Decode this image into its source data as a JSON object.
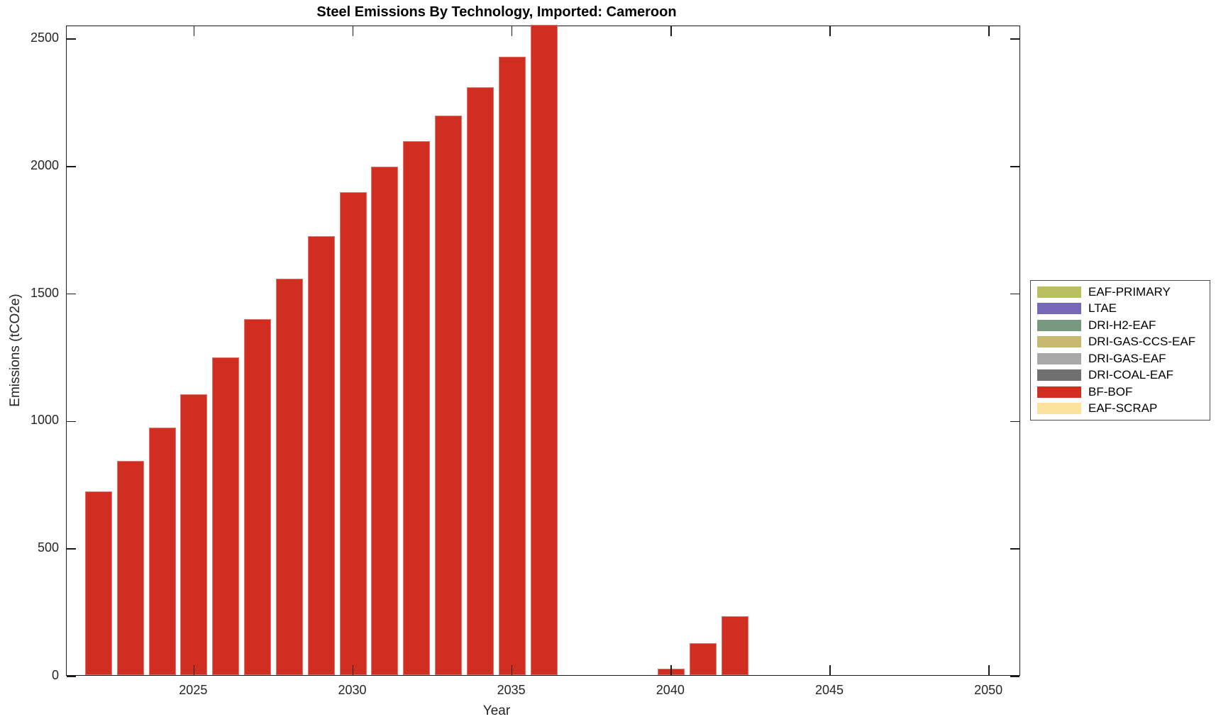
{
  "figure": {
    "title": "Steel Emissions By Technology, Imported: Cameroon",
    "xlabel": "Year",
    "ylabel": "Emissions (tCO2e)"
  },
  "chart_data": {
    "type": "bar",
    "title": "Steel Emissions By Technology, Imported: Cameroon",
    "xlabel": "Year",
    "ylabel": "Emissions (tCO2e)",
    "xlim": [
      2021,
      2051
    ],
    "ylim": [
      0,
      2550
    ],
    "x_ticks": [
      2025,
      2030,
      2035,
      2040,
      2045,
      2050
    ],
    "y_ticks": [
      0,
      500,
      1000,
      1500,
      2000,
      2500
    ],
    "grid": false,
    "legend_position": "right-outside",
    "series": [
      {
        "name": "BF-BOF",
        "color": "#cf2e21",
        "x": [
          2022,
          2023,
          2024,
          2025,
          2026,
          2027,
          2028,
          2029,
          2030,
          2031,
          2032,
          2033,
          2034,
          2035,
          2036,
          2040,
          2041,
          2042
        ],
        "values": [
          720,
          840,
          970,
          1100,
          1245,
          1395,
          1555,
          1720,
          1895,
          1995,
          2095,
          2195,
          2305,
          2425,
          2550,
          25,
          125,
          230
        ]
      }
    ],
    "legend": [
      {
        "label": "EAF-PRIMARY",
        "color": "#b9c05f"
      },
      {
        "label": "LTAE",
        "color": "#7668b7"
      },
      {
        "label": "DRI-H2-EAF",
        "color": "#78997f"
      },
      {
        "label": "DRI-GAS-CCS-EAF",
        "color": "#c7b96f"
      },
      {
        "label": "DRI-GAS-EAF",
        "color": "#a8a8a8"
      },
      {
        "label": "DRI-COAL-EAF",
        "color": "#6f6f6f"
      },
      {
        "label": "BF-BOF",
        "color": "#cf2e21"
      },
      {
        "label": "EAF-SCRAP",
        "color": "#fbe29c"
      }
    ]
  }
}
